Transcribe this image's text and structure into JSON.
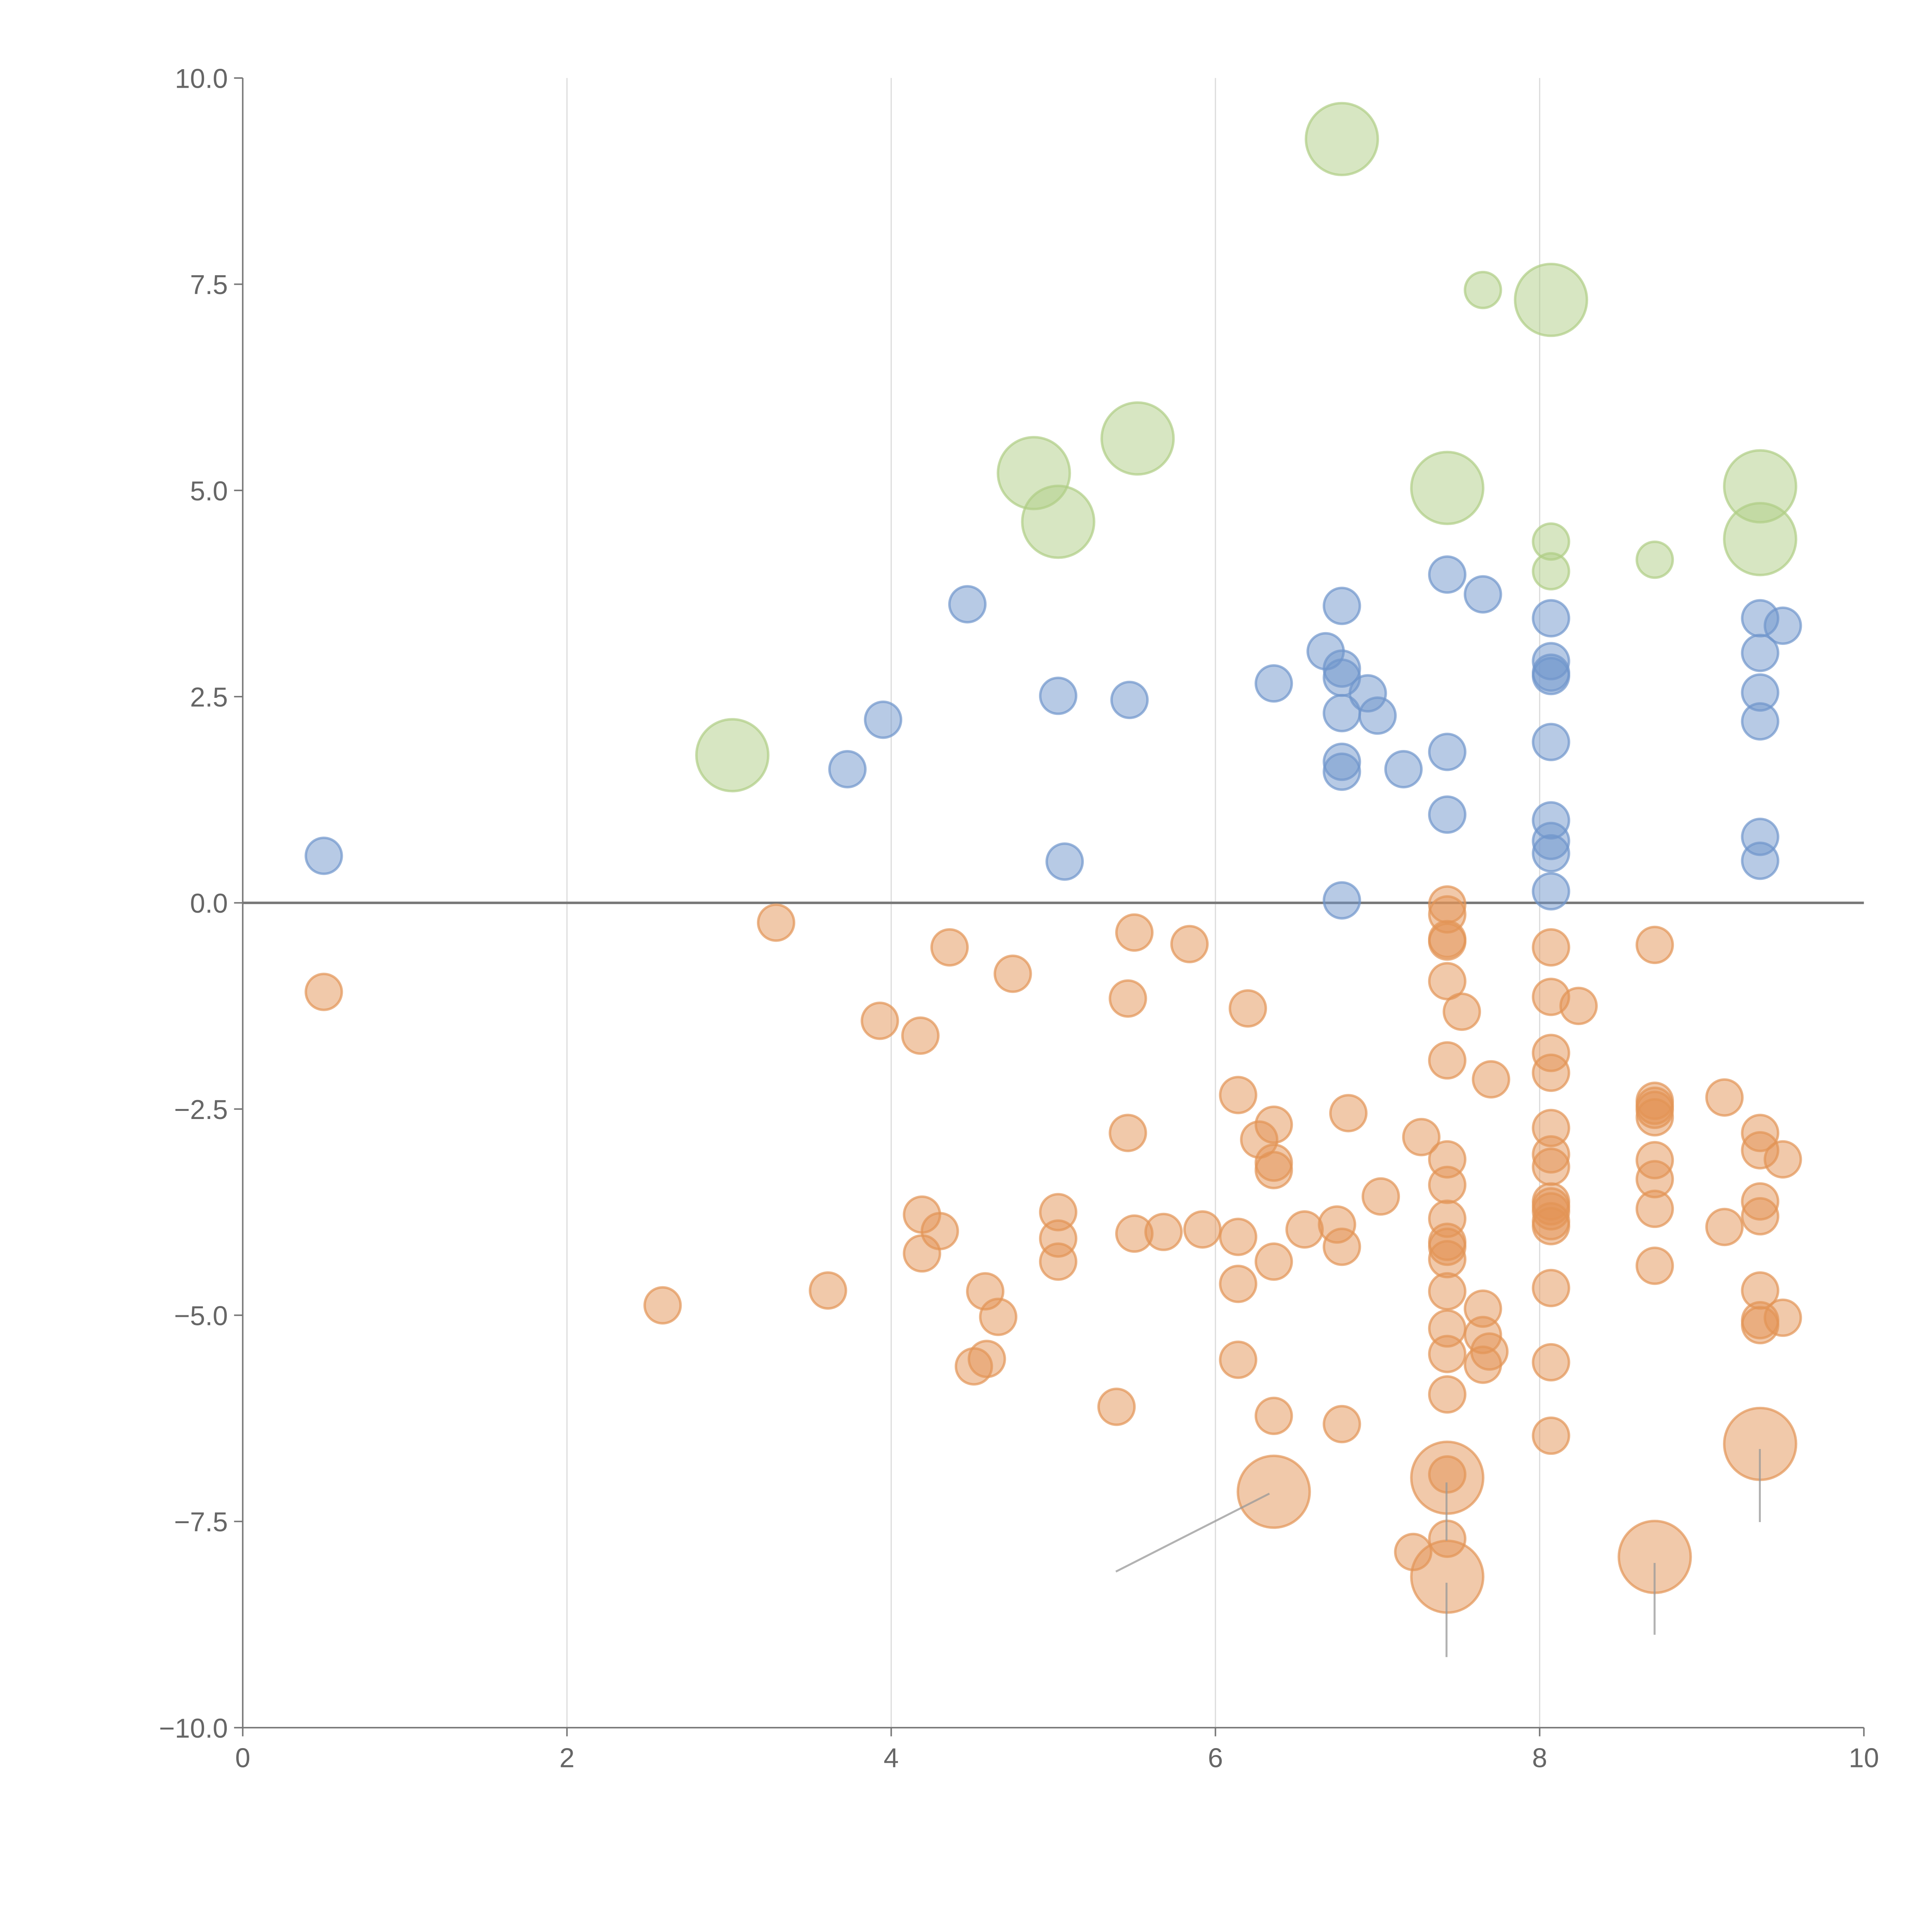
{
  "chart_data": {
    "type": "scatter",
    "title": "",
    "xlabel": "",
    "ylabel": "",
    "xlim": [
      0,
      10
    ],
    "ylim": [
      -10,
      10
    ],
    "x_ticks": [
      "0",
      "2",
      "4",
      "6",
      "8",
      "10"
    ],
    "y_ticks": [
      "10.0",
      "7.5",
      "5.0",
      "2.5",
      "0.0",
      "−2.5",
      "−5.0",
      "−7.5",
      "−10.0"
    ],
    "grid": "vertical",
    "legend": "none",
    "point_format": "[x, y, size]",
    "series": [
      {
        "name": "orange",
        "color": "#e39455",
        "points": [
          [
            0.5,
            -1.08,
            1
          ],
          [
            2.59,
            -4.88,
            1
          ],
          [
            3.29,
            -0.24,
            1
          ],
          [
            3.61,
            -4.7,
            1
          ],
          [
            3.93,
            -1.43,
            1
          ],
          [
            4.18,
            -1.61,
            1
          ],
          [
            4.36,
            -0.54,
            1
          ],
          [
            4.75,
            -0.86,
            1
          ],
          [
            4.19,
            -3.78,
            1
          ],
          [
            4.3,
            -3.98,
            1
          ],
          [
            4.19,
            -4.25,
            1
          ],
          [
            4.58,
            -4.71,
            1
          ],
          [
            4.66,
            -5.02,
            1
          ],
          [
            4.59,
            -5.53,
            1
          ],
          [
            4.51,
            -5.62,
            1
          ],
          [
            5.03,
            -3.75,
            1
          ],
          [
            5.03,
            -4.07,
            1
          ],
          [
            5.03,
            -4.35,
            1
          ],
          [
            5.39,
            -6.11,
            1
          ],
          [
            5.46,
            -1.16,
            1
          ],
          [
            5.5,
            -0.36,
            1
          ],
          [
            5.46,
            -2.79,
            1
          ],
          [
            5.5,
            -4.01,
            1
          ],
          [
            5.68,
            -3.99,
            1
          ],
          [
            5.84,
            -0.5,
            1
          ],
          [
            5.92,
            -3.96,
            1
          ],
          [
            6.14,
            -2.33,
            1
          ],
          [
            6.2,
            -1.28,
            1
          ],
          [
            6.14,
            -4.05,
            1
          ],
          [
            6.14,
            -4.62,
            1
          ],
          [
            6.14,
            -5.54,
            1
          ],
          [
            6.27,
            -2.87,
            1
          ],
          [
            6.36,
            -2.69,
            1
          ],
          [
            6.36,
            -3.15,
            1
          ],
          [
            6.36,
            -3.24,
            1
          ],
          [
            6.36,
            -4.35,
            1
          ],
          [
            6.36,
            -6.22,
            1
          ],
          [
            6.55,
            -3.96,
            1
          ],
          [
            6.75,
            -3.9,
            1
          ],
          [
            6.78,
            -4.17,
            1
          ],
          [
            6.82,
            -2.55,
            1
          ],
          [
            6.78,
            -6.32,
            1
          ],
          [
            7.02,
            -3.56,
            1
          ],
          [
            7.27,
            -2.84,
            1
          ],
          [
            6.36,
            -7.14,
            4
          ],
          [
            7.22,
            -7.87,
            1
          ],
          [
            7.43,
            -0.02,
            1
          ],
          [
            7.43,
            -0.14,
            1
          ],
          [
            7.43,
            -0.44,
            1
          ],
          [
            7.43,
            -0.47,
            1
          ],
          [
            7.43,
            -0.95,
            1
          ],
          [
            7.43,
            -1.91,
            1
          ],
          [
            7.43,
            -3.11,
            1
          ],
          [
            7.43,
            -3.42,
            1
          ],
          [
            7.43,
            -3.83,
            1
          ],
          [
            7.43,
            -4.11,
            1
          ],
          [
            7.43,
            -4.17,
            1
          ],
          [
            7.43,
            -4.32,
            1
          ],
          [
            7.43,
            -4.71,
            1
          ],
          [
            7.43,
            -5.16,
            1
          ],
          [
            7.43,
            -5.47,
            1
          ],
          [
            7.43,
            -5.96,
            1
          ],
          [
            7.43,
            -6.97,
            4
          ],
          [
            7.43,
            -6.93,
            1
          ],
          [
            7.43,
            -7.71,
            1
          ],
          [
            7.43,
            -8.17,
            4
          ],
          [
            7.52,
            -1.32,
            1
          ],
          [
            7.65,
            -4.92,
            1
          ],
          [
            7.65,
            -5.24,
            1
          ],
          [
            7.69,
            -5.44,
            1
          ],
          [
            7.65,
            -5.6,
            1
          ],
          [
            7.7,
            -2.14,
            1
          ],
          [
            8.07,
            -0.54,
            1
          ],
          [
            8.07,
            -1.14,
            1
          ],
          [
            8.07,
            -1.82,
            1
          ],
          [
            8.07,
            -2.06,
            1
          ],
          [
            8.07,
            -2.73,
            1
          ],
          [
            8.07,
            -3.05,
            1
          ],
          [
            8.07,
            -3.2,
            1
          ],
          [
            8.07,
            -3.62,
            1
          ],
          [
            8.07,
            -3.68,
            1
          ],
          [
            8.07,
            -3.74,
            1
          ],
          [
            8.07,
            -3.86,
            1
          ],
          [
            8.07,
            -3.92,
            1
          ],
          [
            8.07,
            -4.67,
            1
          ],
          [
            8.07,
            -5.57,
            1
          ],
          [
            8.07,
            -6.46,
            1
          ],
          [
            8.24,
            -1.25,
            1
          ],
          [
            8.71,
            -0.51,
            1
          ],
          [
            8.71,
            -2.4,
            1
          ],
          [
            8.71,
            -2.46,
            1
          ],
          [
            8.71,
            -2.51,
            1
          ],
          [
            8.71,
            -2.6,
            1
          ],
          [
            8.71,
            -3.12,
            1
          ],
          [
            8.71,
            -3.35,
            1
          ],
          [
            8.71,
            -3.71,
            1
          ],
          [
            8.71,
            -4.4,
            1
          ],
          [
            8.71,
            -7.93,
            4
          ],
          [
            9.14,
            -2.36,
            1
          ],
          [
            9.14,
            -3.93,
            1
          ],
          [
            9.36,
            -2.79,
            1
          ],
          [
            9.36,
            -3.0,
            1
          ],
          [
            9.36,
            -3.62,
            1
          ],
          [
            9.36,
            -3.8,
            1
          ],
          [
            9.36,
            -4.7,
            1
          ],
          [
            9.36,
            -5.06,
            1
          ],
          [
            9.36,
            -5.12,
            1
          ],
          [
            9.36,
            -6.56,
            4
          ],
          [
            9.5,
            -3.11,
            1
          ],
          [
            9.5,
            -5.03,
            1
          ]
        ]
      },
      {
        "name": "blue",
        "color": "#6f96cc",
        "points": [
          [
            0.5,
            0.57,
            1
          ],
          [
            3.73,
            1.62,
            1
          ],
          [
            3.95,
            2.22,
            1
          ],
          [
            4.47,
            3.62,
            1
          ],
          [
            5.03,
            2.51,
            1
          ],
          [
            5.47,
            2.46,
            1
          ],
          [
            5.07,
            0.5,
            1
          ],
          [
            6.36,
            2.66,
            1
          ],
          [
            6.68,
            3.05,
            1
          ],
          [
            6.78,
            3.6,
            1
          ],
          [
            6.78,
            2.84,
            1
          ],
          [
            6.78,
            2.73,
            1
          ],
          [
            6.78,
            2.3,
            1
          ],
          [
            6.94,
            2.54,
            1
          ],
          [
            7.0,
            2.27,
            1
          ],
          [
            6.78,
            1.71,
            1
          ],
          [
            6.78,
            1.59,
            1
          ],
          [
            6.78,
            0.03,
            1
          ],
          [
            7.16,
            1.62,
            1
          ],
          [
            7.43,
            3.98,
            1
          ],
          [
            7.65,
            3.74,
            1
          ],
          [
            7.43,
            1.83,
            1
          ],
          [
            7.43,
            1.07,
            1
          ],
          [
            8.07,
            3.45,
            1
          ],
          [
            8.07,
            2.93,
            1
          ],
          [
            8.07,
            2.79,
            1
          ],
          [
            8.07,
            2.75,
            1
          ],
          [
            8.07,
            1.95,
            1
          ],
          [
            8.07,
            1.0,
            1
          ],
          [
            8.07,
            0.75,
            1
          ],
          [
            8.07,
            0.6,
            1
          ],
          [
            8.07,
            0.14,
            1
          ],
          [
            9.36,
            3.45,
            1
          ],
          [
            9.36,
            3.03,
            1
          ],
          [
            9.36,
            2.55,
            1
          ],
          [
            9.36,
            2.2,
            1
          ],
          [
            9.36,
            0.8,
            1
          ],
          [
            9.36,
            0.51,
            1
          ],
          [
            9.5,
            3.36,
            1
          ]
        ]
      },
      {
        "name": "green",
        "color": "#afcd85",
        "points": [
          [
            3.02,
            1.79,
            4
          ],
          [
            4.88,
            5.21,
            4
          ],
          [
            5.03,
            4.62,
            4
          ],
          [
            5.52,
            5.63,
            4
          ],
          [
            6.78,
            9.26,
            4
          ],
          [
            7.65,
            7.43,
            1
          ],
          [
            8.07,
            7.31,
            4
          ],
          [
            7.43,
            5.03,
            4
          ],
          [
            8.07,
            4.38,
            1
          ],
          [
            8.07,
            4.02,
            1
          ],
          [
            8.71,
            4.16,
            1
          ],
          [
            9.36,
            5.05,
            4
          ],
          [
            9.36,
            4.41,
            4
          ]
        ]
      }
    ]
  }
}
